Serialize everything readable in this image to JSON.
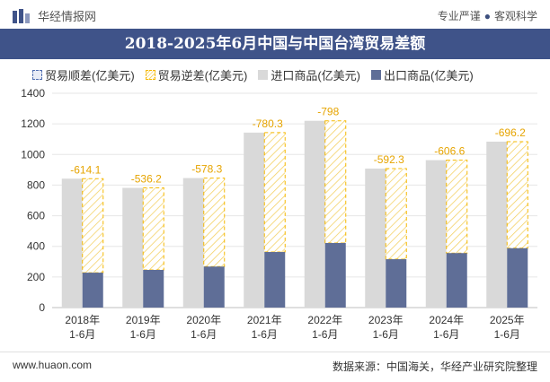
{
  "header": {
    "logo_text": "华经情报网",
    "tagline_left": "专业严谨",
    "tagline_right": "客观科学"
  },
  "colors": {
    "title_bar": "#3f5389",
    "import_bar": "#d9d9d9",
    "export_bar": "#5f6e97",
    "deficit_border": "#f5b800",
    "deficit_label": "#e6a400"
  },
  "chart_data": {
    "type": "bar",
    "title": "2018-2025年6月中国与中国台湾贸易差额",
    "categories": [
      "2018年\n1-6月",
      "2019年\n1-6月",
      "2020年\n1-6月",
      "2021年\n1-6月",
      "2022年\n1-6月",
      "2023年\n1-6月",
      "2024年\n1-6月",
      "2025年\n1-6月"
    ],
    "ylim": [
      0,
      1400
    ],
    "yticks": [
      0,
      200,
      400,
      600,
      800,
      1000,
      1200,
      1400
    ],
    "grid": true,
    "legend_position": "top",
    "series": [
      {
        "name": "贸易顺差(亿美元)",
        "values": [
          null,
          null,
          null,
          null,
          null,
          null,
          null,
          null
        ]
      },
      {
        "name": "贸易逆差(亿美元)",
        "values": [
          -614.1,
          -536.2,
          -578.3,
          -780.3,
          -798,
          -592.3,
          -606.6,
          -696.2
        ],
        "labels": [
          "-614.1",
          "-536.2",
          "-578.3",
          "-780.3",
          "-798",
          "-592.3",
          "-606.6",
          "-696.2"
        ]
      },
      {
        "name": "进口商品(亿美元)",
        "values": [
          842,
          782,
          846,
          1143,
          1220,
          908,
          963,
          1084
        ]
      },
      {
        "name": "出口商品(亿美元)",
        "values": [
          228,
          246,
          268,
          363,
          422,
          316,
          356,
          388
        ]
      }
    ]
  },
  "footer": {
    "website": "www.huaon.com",
    "source": "数据来源：中国海关，华经产业研究院整理"
  }
}
